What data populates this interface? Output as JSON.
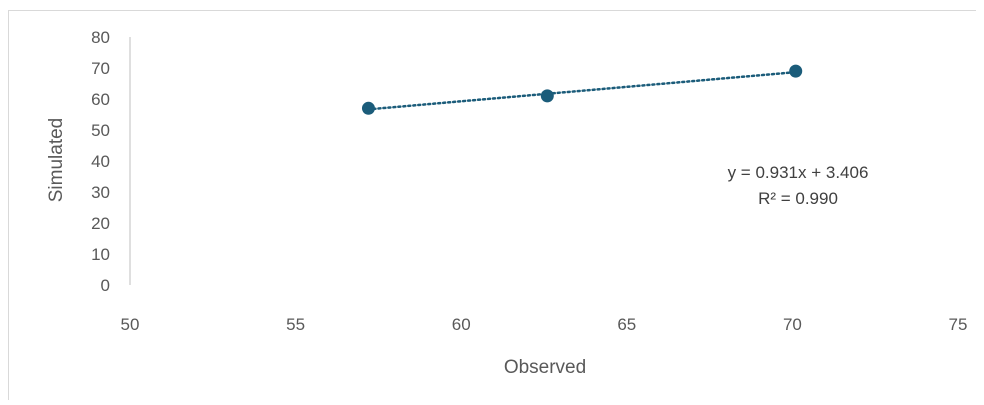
{
  "chart_data": {
    "type": "scatter",
    "title": "",
    "xlabel": "Observed",
    "ylabel": "Simulated",
    "xlim": [
      50,
      75
    ],
    "ylim": [
      0,
      80
    ],
    "x_ticks": [
      50,
      55,
      60,
      65,
      70,
      75
    ],
    "y_ticks": [
      0,
      10,
      20,
      30,
      40,
      50,
      60,
      70,
      80
    ],
    "grid": false,
    "legend": "none",
    "series": [
      {
        "x": [
          57.2,
          62.6,
          70.1
        ],
        "y": [
          57.0,
          61.0,
          69.0
        ],
        "marker_color": "#1b5c7a"
      }
    ],
    "trendline": {
      "type": "linear",
      "slope": 0.931,
      "intercept": 3.406,
      "style": "dotted",
      "color": "#1b5c7a",
      "equation_label": "y = 0.931x + 3.406",
      "r2_label": "R² = 0.990"
    }
  }
}
